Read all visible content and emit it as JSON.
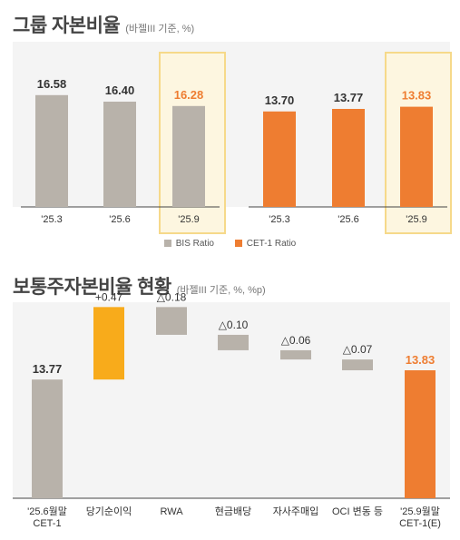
{
  "section1": {
    "title": "그룹 자본비율",
    "subtitle": "(바젤III 기준, %)"
  },
  "section2": {
    "title": "보통주자본비율 현황",
    "subtitle": "(바젤III 기준, %, %p)"
  },
  "legend": [
    {
      "label": "BIS Ratio",
      "color": "#b8b2aa"
    },
    {
      "label": "CET-1 Ratio",
      "color": "#ee7d31"
    }
  ],
  "colors": {
    "gray": "#b8b2aa",
    "orange": "#ee7d31",
    "yellow": "#f8ab1b",
    "highlight_fill": "#fdf6e0",
    "highlight_border": "#f6d98a",
    "background": "#f4f4f4",
    "label_dark": "#333333",
    "label_orange": "#ee7d31"
  },
  "chart_data": [
    {
      "type": "bar",
      "series": [
        {
          "name": "BIS Ratio",
          "values": [
            16.58,
            16.4,
            16.28
          ]
        }
      ],
      "categories": [
        "'25.3",
        "'25.6",
        "'25.9"
      ],
      "highlight_index": 2
    },
    {
      "type": "bar",
      "series": [
        {
          "name": "CET-1 Ratio",
          "values": [
            13.7,
            13.77,
            13.83
          ]
        }
      ],
      "categories": [
        "'25.3",
        "'25.6",
        "'25.9"
      ],
      "highlight_index": 2
    },
    {
      "type": "waterfall",
      "categories": [
        "'25.6월말\nCET-1",
        "당기순이익",
        "RWA",
        "현금배당",
        "자사주매입",
        "OCI 변동 등",
        "'25.9월말\nCET-1(E)"
      ],
      "labels": [
        "13.77",
        "+0.47",
        "△0.18",
        "△0.10",
        "△0.06",
        "△0.07",
        "13.83"
      ],
      "values": [
        13.77,
        0.47,
        -0.18,
        -0.1,
        -0.06,
        -0.07,
        13.83
      ],
      "kinds": [
        "total",
        "increase",
        "decrease",
        "decrease",
        "decrease",
        "decrease",
        "total"
      ]
    }
  ]
}
